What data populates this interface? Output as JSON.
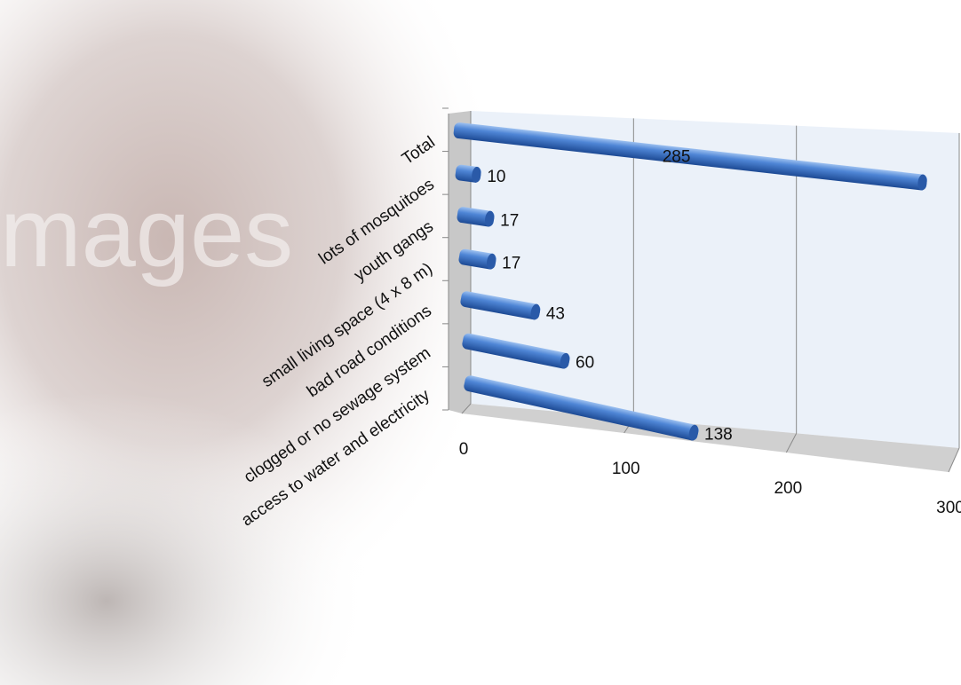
{
  "chart_data": {
    "type": "bar",
    "orientation": "horizontal",
    "style": "3d-cylinder",
    "categories": [
      "access to water and electricity",
      "clogged or no sewage system",
      "bad road conditions",
      "small living space (4 x 8 m)",
      "youth gangs",
      "lots of mosquitoes",
      "Total"
    ],
    "values": [
      138,
      60,
      43,
      17,
      17,
      10,
      285
    ],
    "color": "#3a6fc0",
    "xlim": [
      0,
      300
    ],
    "xticks": [
      0,
      100,
      200,
      300
    ],
    "grid": true
  }
}
